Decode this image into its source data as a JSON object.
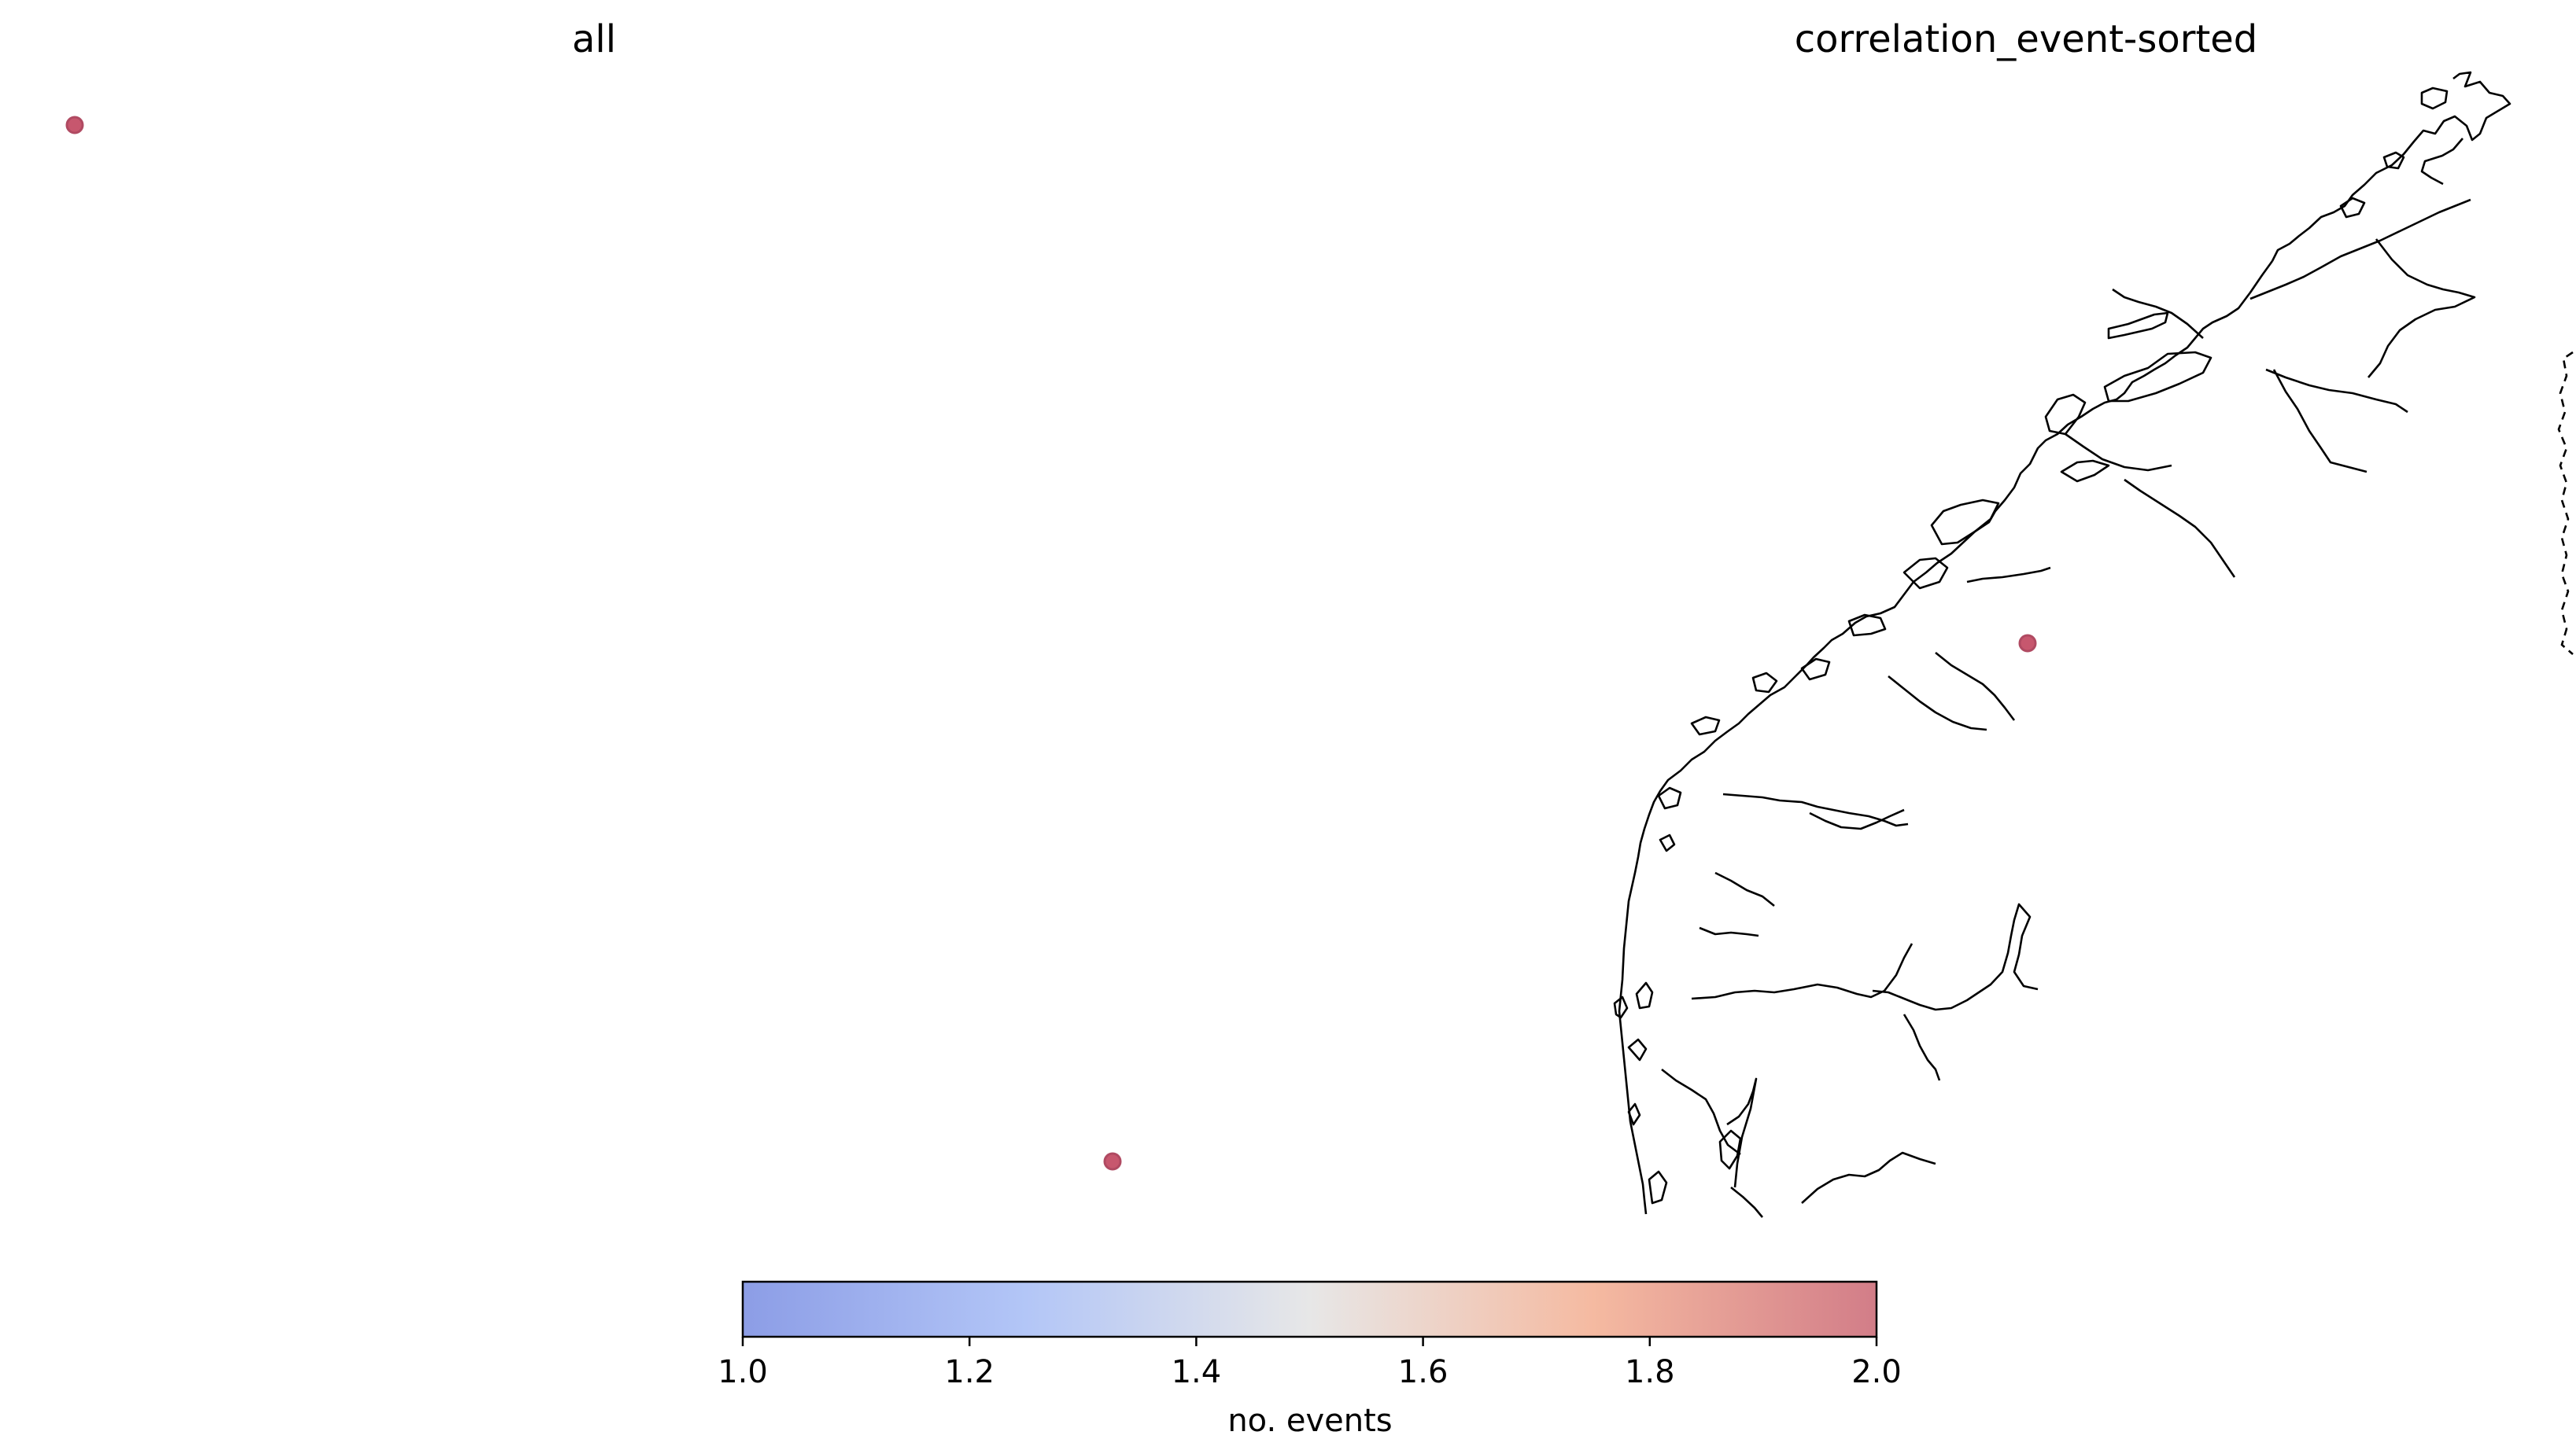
{
  "panels": [
    {
      "title": "all"
    },
    {
      "title": "correlation_event-sorted"
    }
  ],
  "points": [
    {
      "panel": "all",
      "value": 2.0
    },
    {
      "panel": "all",
      "value": 2.0
    },
    {
      "panel": "correlation_event-sorted",
      "value": 2.0
    }
  ],
  "colorbar": {
    "label": "no. events",
    "range": [
      1.0,
      2.0
    ],
    "ticks": [
      "1.0",
      "1.2",
      "1.4",
      "1.6",
      "1.8",
      "2.0"
    ],
    "colormap": "coolwarm",
    "color_low": "#8c9de6",
    "color_mid": "#e7e7e7",
    "color_high": "#d27d88"
  },
  "marker_color": "#c7576e",
  "coastline_color": "#000000"
}
